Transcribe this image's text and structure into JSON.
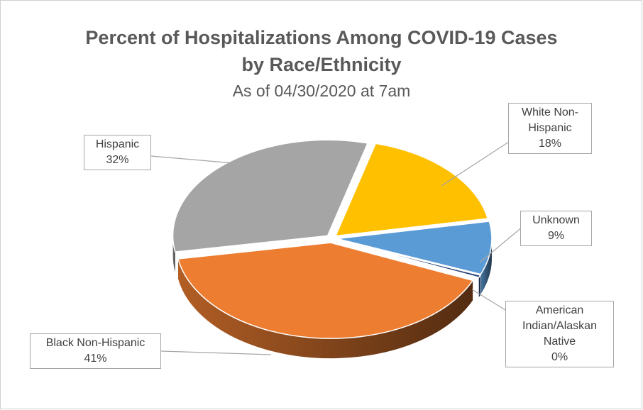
{
  "chart_data": {
    "type": "pie",
    "title": "Percent of Hospitalizations Among COVID-19 Cases",
    "title_line2": "by Race/Ethnicity",
    "subtitle": "As of 04/30/2020 at 7am",
    "style": "3d-exploded",
    "slices": [
      {
        "name": "White Non-Hispanic",
        "name_lines": [
          "White Non-",
          "Hispanic"
        ],
        "value": 18,
        "value_label": "18%",
        "color": "#FFC000"
      },
      {
        "name": "Unknown",
        "name_lines": [
          "Unknown"
        ],
        "value": 9,
        "value_label": "9%",
        "color": "#5B9BD5"
      },
      {
        "name": "American Indian/Alaskan Native",
        "name_lines": [
          "American",
          "Indian/Alaskan",
          "Native"
        ],
        "value": 0.4,
        "value_label": "0%",
        "color": "#264478"
      },
      {
        "name": "Black Non-Hispanic",
        "name_lines": [
          "Black Non-Hispanic"
        ],
        "value": 41,
        "value_label": "41%",
        "color": "#ED7D31"
      },
      {
        "name": "Hispanic",
        "name_lines": [
          "Hispanic"
        ],
        "value": 32,
        "value_label": "32%",
        "color": "#A5A5A5"
      }
    ]
  }
}
